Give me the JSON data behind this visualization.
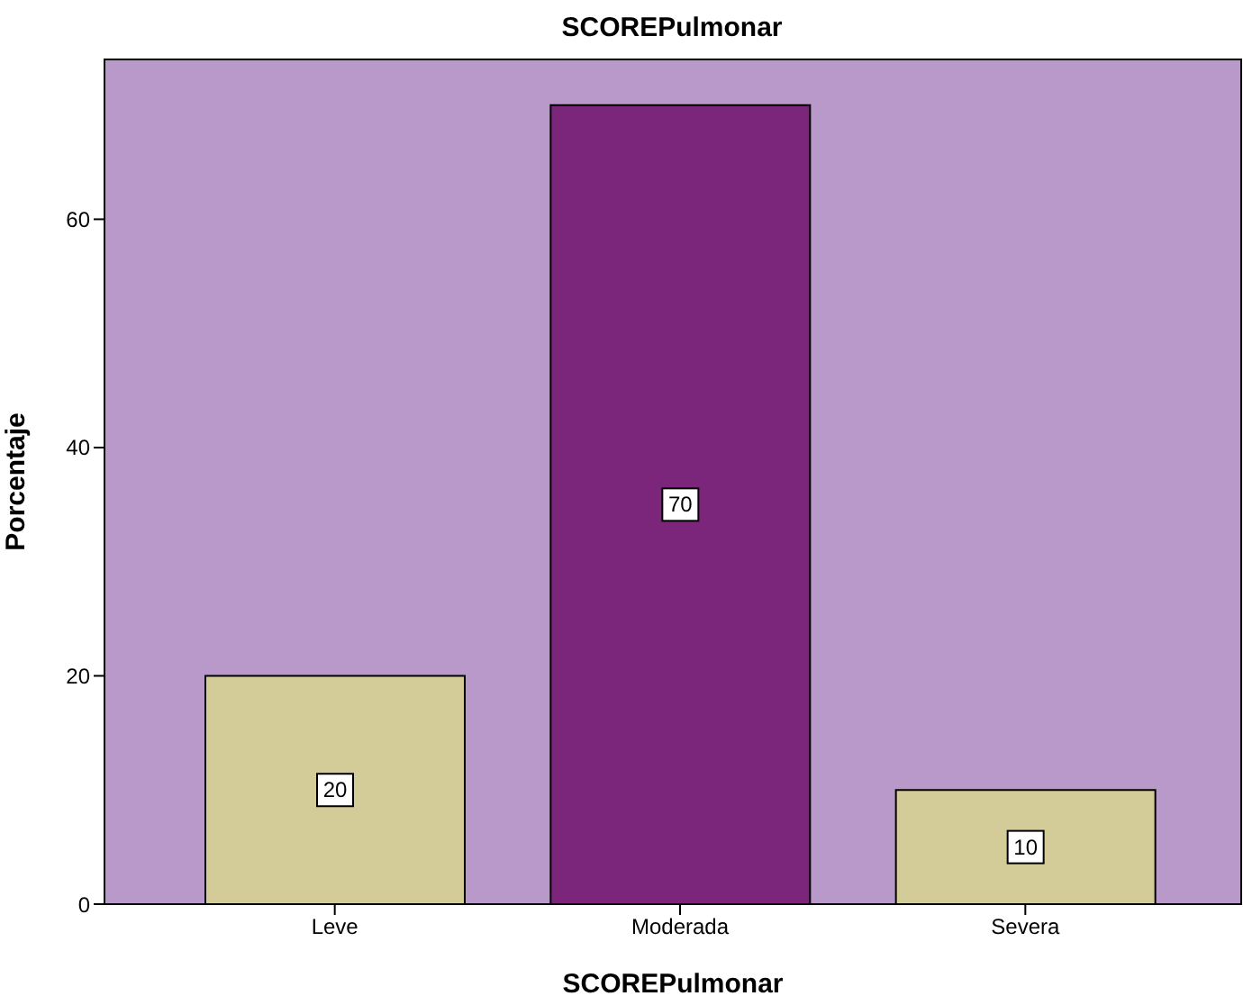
{
  "chart_data": {
    "type": "bar",
    "title": "SCOREPulmonar",
    "xlabel": "SCOREPulmonar",
    "ylabel": "Porcentaje",
    "categories": [
      "Leve",
      "Moderada",
      "Severa"
    ],
    "values": [
      20,
      70,
      10
    ],
    "colors": [
      "#d3cc98",
      "#7b267b",
      "#d3cc98"
    ],
    "ylim": [
      0,
      74
    ],
    "yticks": [
      0,
      20,
      40,
      60
    ],
    "data_labels": true,
    "grid": false
  }
}
